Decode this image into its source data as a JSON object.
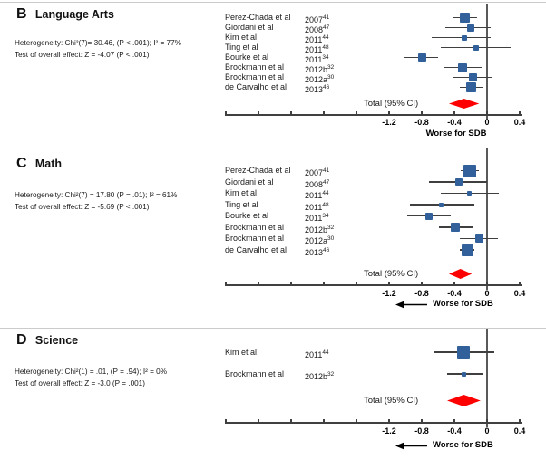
{
  "colors": {
    "square_blue": "#31609B",
    "diamond_red": "#FF0000",
    "line_dark": "#3F3F3F",
    "axis_gray": "#404040",
    "separator_gray": "#CBCBCB"
  },
  "chart_data": [
    {
      "type": "forest",
      "letter": "B",
      "title": "Language Arts",
      "heterogeneity": "Heterogeneity: Chi²(7)= 30.46, (P < .001); I² = 77%",
      "overall_effect": "Test of overall effect: Z = -4.07 (P < .001)",
      "studies": [
        {
          "name": "Perez-Chada et al",
          "year": "2007",
          "ref": "41",
          "estimate": -0.27,
          "ci": [
            -0.41,
            -0.12
          ],
          "size": 11
        },
        {
          "name": "Giordani et al",
          "year": "2008",
          "ref": "47",
          "estimate": -0.2,
          "ci": [
            -0.51,
            0.04
          ],
          "size": 8
        },
        {
          "name": "Kim et al",
          "year": "2011",
          "ref": "44",
          "estimate": -0.28,
          "ci": [
            -0.68,
            0.04
          ],
          "size": 6
        },
        {
          "name": "Ting et al",
          "year": "2011",
          "ref": "48",
          "estimate": -0.13,
          "ci": [
            -0.57,
            0.29
          ],
          "size": 6
        },
        {
          "name": "Bourke et al",
          "year": "2011",
          "ref": "34",
          "estimate": -0.8,
          "ci": [
            -1.02,
            -0.6
          ],
          "size": 9
        },
        {
          "name": "Brockmann et al",
          "year": "2012b",
          "ref": "32",
          "estimate": -0.3,
          "ci": [
            -0.52,
            -0.07
          ],
          "size": 10
        },
        {
          "name": "Brockmann et al",
          "year": "2012a",
          "ref": "30",
          "estimate": -0.17,
          "ci": [
            -0.41,
            0.06
          ],
          "size": 9
        },
        {
          "name": "de Carvalho et al",
          "year": "2013",
          "ref": "46",
          "estimate": -0.19,
          "ci": [
            -0.33,
            -0.06
          ],
          "size": 11
        }
      ],
      "total": {
        "label": "Total (95% CI)",
        "estimate": -0.29,
        "ci": [
          -0.47,
          -0.1
        ]
      },
      "xticks": [
        "-1.2",
        "-0.8",
        "-0.4",
        "0",
        "0.4"
      ],
      "xrange": [
        -3.2,
        0.44
      ],
      "xlabel": "Worse for SDB",
      "arrow_left": false
    },
    {
      "type": "forest",
      "letter": "C",
      "title": "Math",
      "heterogeneity": "Heterogeneity: Chi²(7) = 17.80 (P = .01); I² = 61%",
      "overall_effect": "Test of overall effect: Z = -5.69 (P < .001)",
      "studies": [
        {
          "name": "Perez-Chada et al",
          "year": "2007",
          "ref": "41",
          "estimate": -0.21,
          "ci": [
            -0.32,
            -0.1
          ],
          "size": 14
        },
        {
          "name": "Giordani et al",
          "year": "2008",
          "ref": "47",
          "estimate": -0.34,
          "ci": [
            -0.71,
            0.0
          ],
          "size": 8
        },
        {
          "name": "Kim et al",
          "year": "2011",
          "ref": "44",
          "estimate": -0.22,
          "ci": [
            -0.57,
            0.15
          ],
          "size": 5
        },
        {
          "name": "Ting et al",
          "year": "2011",
          "ref": "48",
          "estimate": -0.56,
          "ci": [
            -0.95,
            -0.16
          ],
          "size": 5
        },
        {
          "name": "Bourke et al",
          "year": "2011",
          "ref": "34",
          "estimate": -0.71,
          "ci": [
            -0.98,
            -0.44
          ],
          "size": 8
        },
        {
          "name": "Brockmann et al",
          "year": "2012b",
          "ref": "32",
          "estimate": -0.39,
          "ci": [
            -0.59,
            -0.18
          ],
          "size": 10
        },
        {
          "name": "Brockmann et al",
          "year": "2012a",
          "ref": "30",
          "estimate": -0.1,
          "ci": [
            -0.33,
            0.13
          ],
          "size": 9
        },
        {
          "name": "de Carvalho et al",
          "year": "2013",
          "ref": "46",
          "estimate": -0.24,
          "ci": [
            -0.33,
            -0.16
          ],
          "size": 13
        }
      ],
      "total": {
        "label": "Total (95% CI)",
        "estimate": -0.33,
        "ci": [
          -0.47,
          -0.19
        ]
      },
      "xticks": [
        "-1.2",
        "-0.8",
        "-0.4",
        "0",
        "0.4"
      ],
      "xrange": [
        -3.2,
        0.44
      ],
      "xlabel": "Worse for SDB",
      "arrow_left": true
    },
    {
      "type": "forest",
      "letter": "D",
      "title": "Science",
      "heterogeneity": "Heterogeneity: Chi²(1) = .01, (P = .94); I² = 0%",
      "overall_effect": "Test of overall effect: Z = -3.0 (P = .001)",
      "studies": [
        {
          "name": "Kim et al",
          "year": "2011",
          "ref": "44",
          "estimate": -0.29,
          "ci": [
            -0.64,
            0.09
          ],
          "size": 14
        },
        {
          "name": "Brockmann et al",
          "year": "2012b",
          "ref": "32",
          "estimate": -0.28,
          "ci": [
            -0.49,
            -0.06
          ],
          "size": 5
        }
      ],
      "total": {
        "label": "Total (95% CI)",
        "estimate": -0.28,
        "ci": [
          -0.49,
          -0.08
        ]
      },
      "xticks": [
        "-1.2",
        "-0.8",
        "-0.4",
        "0",
        "0.4"
      ],
      "xrange": [
        -3.2,
        0.44
      ],
      "xlabel": "Worse for SDB",
      "arrow_left": true
    }
  ]
}
